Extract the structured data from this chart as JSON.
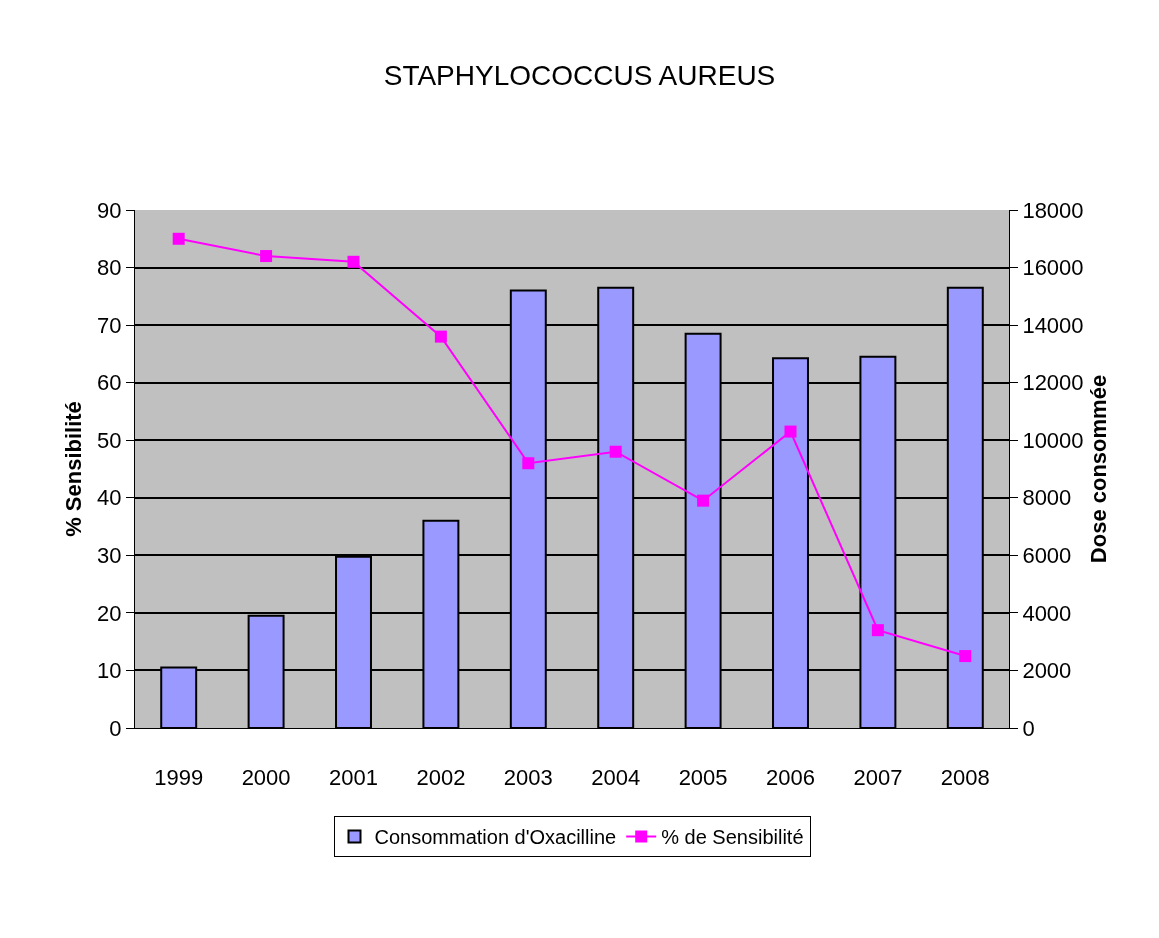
{
  "chart_data": {
    "type": "bar",
    "title": "STAPHYLOCOCCUS AUREUS",
    "ylabel": "% Sensibilité",
    "y2label": "Dose consommée",
    "categories": [
      "1999",
      "2000",
      "2001",
      "2002",
      "2003",
      "2004",
      "2005",
      "2006",
      "2007",
      "2008"
    ],
    "series": [
      {
        "name": "Consommation d'Oxacilline",
        "axis": "y2",
        "color": "#9999ff",
        "values": [
          2100,
          3900,
          5950,
          7200,
          15200,
          15300,
          13700,
          12850,
          12900,
          15300
        ]
      },
      {
        "name": "% de Sensibilité",
        "type": "line",
        "axis": "y",
        "color": "#ff00ff",
        "marker": "square",
        "values": [
          85,
          82,
          81,
          68,
          46,
          48,
          39.5,
          51.5,
          17,
          12.5
        ]
      }
    ],
    "ylim": [
      0,
      90
    ],
    "yticks": [
      0,
      10,
      20,
      30,
      40,
      50,
      60,
      70,
      80,
      90
    ],
    "y2lim": [
      0,
      18000
    ],
    "y2ticks": [
      0,
      2000,
      4000,
      6000,
      8000,
      10000,
      12000,
      14000,
      16000,
      18000
    ],
    "grid": "y",
    "legend": "bottom"
  }
}
